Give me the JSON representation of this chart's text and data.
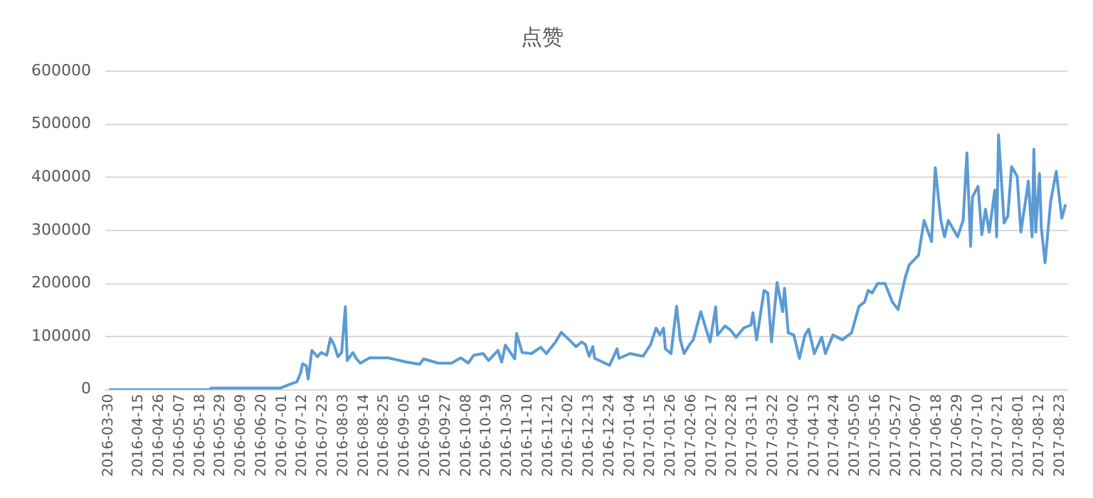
{
  "chart_data": {
    "type": "line",
    "title": "点赞",
    "x": [
      "2016-03-30",
      "2016-05-23",
      "2016-05-24",
      "2016-06-30",
      "2016-07-05",
      "2016-07-09",
      "2016-07-11",
      "2016-07-12",
      "2016-07-14",
      "2016-07-15",
      "2016-07-17",
      "2016-07-20",
      "2016-07-22",
      "2016-07-25",
      "2016-07-27",
      "2016-07-29",
      "2016-07-31",
      "2016-08-02",
      "2016-08-04",
      "2016-08-05",
      "2016-08-08",
      "2016-08-10",
      "2016-08-12",
      "2016-08-17",
      "2016-08-27",
      "2016-09-06",
      "2016-09-13",
      "2016-09-15",
      "2016-09-23",
      "2016-09-30",
      "2016-10-05",
      "2016-10-09",
      "2016-10-12",
      "2016-10-17",
      "2016-10-20",
      "2016-10-25",
      "2016-10-27",
      "2016-10-29",
      "2016-11-03",
      "2016-11-04",
      "2016-11-07",
      "2016-11-12",
      "2016-11-17",
      "2016-11-20",
      "2016-11-25",
      "2016-11-28",
      "2016-12-02",
      "2016-12-06",
      "2016-12-09",
      "2016-12-11",
      "2016-12-13",
      "2016-12-15",
      "2016-12-16",
      "2016-12-24",
      "2016-12-28",
      "2016-12-29",
      "2017-01-04",
      "2017-01-11",
      "2017-01-15",
      "2017-01-18",
      "2017-01-20",
      "2017-01-22",
      "2017-01-23",
      "2017-01-26",
      "2017-01-29",
      "2017-01-31",
      "2017-02-02",
      "2017-02-05",
      "2017-02-07",
      "2017-02-11",
      "2017-02-14",
      "2017-02-16",
      "2017-02-19",
      "2017-02-20",
      "2017-02-24",
      "2017-02-27",
      "2017-03-02",
      "2017-03-06",
      "2017-03-10",
      "2017-03-11",
      "2017-03-13",
      "2017-03-17",
      "2017-03-19",
      "2017-03-21",
      "2017-03-24",
      "2017-03-27",
      "2017-03-28",
      "2017-03-30",
      "2017-04-02",
      "2017-04-05",
      "2017-04-08",
      "2017-04-10",
      "2017-04-13",
      "2017-04-17",
      "2017-04-19",
      "2017-04-23",
      "2017-04-28",
      "2017-05-03",
      "2017-05-07",
      "2017-05-10",
      "2017-05-12",
      "2017-05-14",
      "2017-05-17",
      "2017-05-21",
      "2017-05-25",
      "2017-05-28",
      "2017-06-01",
      "2017-06-03",
      "2017-06-08",
      "2017-06-11",
      "2017-06-15",
      "2017-06-17",
      "2017-06-20",
      "2017-06-22",
      "2017-06-24",
      "2017-06-29",
      "2017-07-02",
      "2017-07-04",
      "2017-07-06",
      "2017-07-07",
      "2017-07-10",
      "2017-07-12",
      "2017-07-14",
      "2017-07-16",
      "2017-07-19",
      "2017-07-20",
      "2017-07-21",
      "2017-07-24",
      "2017-07-26",
      "2017-07-28",
      "2017-07-31",
      "2017-08-02",
      "2017-08-05",
      "2017-08-06",
      "2017-08-08",
      "2017-08-09",
      "2017-08-10",
      "2017-08-12",
      "2017-08-13",
      "2017-08-15",
      "2017-08-18",
      "2017-08-21",
      "2017-08-24",
      "2017-08-26"
    ],
    "series": [
      {
        "color": "#5b9bd5",
        "values": [
          0,
          0,
          3000,
          3000,
          10000,
          15000,
          32000,
          49000,
          45000,
          20000,
          74000,
          62000,
          70000,
          65000,
          97000,
          84000,
          62000,
          70000,
          156000,
          55000,
          70000,
          58000,
          50000,
          60000,
          60000,
          52000,
          48000,
          58000,
          50000,
          50000,
          60000,
          50000,
          65000,
          68000,
          55000,
          74000,
          52000,
          84000,
          58000,
          106000,
          70000,
          68000,
          80000,
          68000,
          90000,
          108000,
          95000,
          81000,
          90000,
          85000,
          63000,
          81000,
          59000,
          46000,
          77000,
          59000,
          68000,
          63000,
          85000,
          116000,
          103000,
          116000,
          77000,
          68000,
          157000,
          94000,
          68000,
          85000,
          94000,
          147000,
          112000,
          90000,
          156000,
          103000,
          120000,
          112000,
          99000,
          116000,
          122000,
          145000,
          94000,
          187000,
          182000,
          90000,
          202000,
          147000,
          191000,
          107000,
          103000,
          59000,
          103000,
          114000,
          68000,
          99000,
          68000,
          103000,
          94000,
          107000,
          157000,
          165000,
          187000,
          182000,
          200000,
          200000,
          165000,
          151000,
          213000,
          235000,
          253000,
          319000,
          279000,
          418000,
          319000,
          288000,
          319000,
          288000,
          319000,
          446000,
          270000,
          363000,
          383000,
          292000,
          340000,
          297000,
          376000,
          288000,
          480000,
          314000,
          327000,
          420000,
          402000,
          297000,
          367000,
          393000,
          288000,
          453000,
          297000,
          407000,
          305000,
          239000,
          354000,
          411000,
          323000,
          349000
        ]
      }
    ],
    "xlim": [
      "2016-03-28",
      "2017-08-27"
    ],
    "xticks": [
      "2016-03-30",
      "2016-04-15",
      "2016-04-26",
      "2016-05-07",
      "2016-05-18",
      "2016-05-29",
      "2016-06-09",
      "2016-06-20",
      "2016-07-01",
      "2016-07-12",
      "2016-07-23",
      "2016-08-03",
      "2016-08-14",
      "2016-08-25",
      "2016-09-05",
      "2016-09-16",
      "2016-09-27",
      "2016-10-08",
      "2016-10-19",
      "2016-10-30",
      "2016-11-10",
      "2016-11-21",
      "2016-12-02",
      "2016-12-13",
      "2016-12-24",
      "2017-01-04",
      "2017-01-15",
      "2017-01-26",
      "2017-02-06",
      "2017-02-17",
      "2017-02-28",
      "2017-03-11",
      "2017-03-22",
      "2017-04-02",
      "2017-04-13",
      "2017-04-24",
      "2017-05-05",
      "2017-05-16",
      "2017-05-27",
      "2017-06-07",
      "2017-06-18",
      "2017-06-29",
      "2017-07-10",
      "2017-07-21",
      "2017-08-01",
      "2017-08-12",
      "2017-08-23"
    ],
    "ylim": [
      0,
      600000
    ],
    "yticks": [
      0,
      100000,
      200000,
      300000,
      400000,
      500000,
      600000
    ],
    "grid": "y",
    "legend": false,
    "marker": "none",
    "line_style": "solid"
  }
}
